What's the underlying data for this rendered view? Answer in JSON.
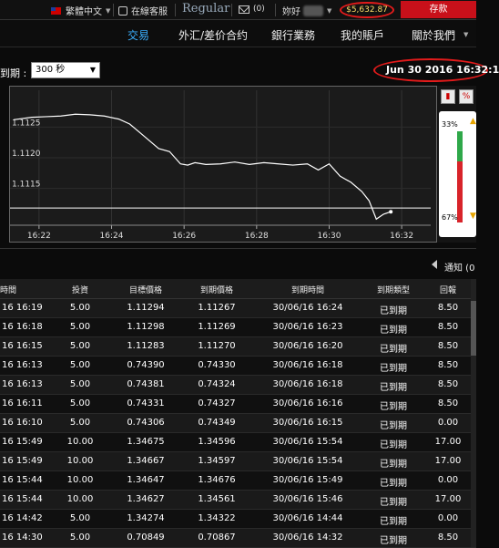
{
  "topbar": {
    "language": "繁體中文",
    "support": "在線客服",
    "account_type": "Regular",
    "mail_count": "(0)",
    "greeting": "妳好",
    "balance": "$5,632.87",
    "deposit_label": "存款"
  },
  "nav": {
    "items": [
      "交易",
      "外汇/差价合约",
      "銀行業務",
      "我的賬戶",
      "關於我們"
    ],
    "active_index": 0
  },
  "expiry": {
    "label": "到期 :",
    "selected": "300 秒",
    "datetime": "Jun 30 2016  16:32:1"
  },
  "chart_data": {
    "type": "line",
    "x_ticks": [
      "16:22",
      "16:24",
      "16:26",
      "16:28",
      "16:30",
      "16:32"
    ],
    "y_ticks": [
      1.1125,
      1.112,
      1.1115
    ],
    "y_tick_labels": [
      "1.1125",
      "1.1120",
      "1.1115"
    ],
    "ylim": [
      1.1109,
      1.1131
    ],
    "x_range_minutes": [
      21.2,
      32.8
    ],
    "series": [
      {
        "x": [
          21.3,
          21.8,
          22.2,
          22.6,
          23.0,
          23.4,
          23.8,
          24.2,
          24.5,
          24.8,
          25.0,
          25.3,
          25.6,
          25.9,
          26.1,
          26.3,
          26.6,
          27.0,
          27.4,
          27.8,
          28.2,
          28.6,
          29.0,
          29.4,
          29.7,
          30.0,
          30.3,
          30.6,
          30.9,
          31.1,
          31.3,
          31.5,
          31.7
        ],
        "y": [
          1.11262,
          1.11266,
          1.11267,
          1.11268,
          1.11271,
          1.1127,
          1.11268,
          1.11263,
          1.11255,
          1.1124,
          1.1123,
          1.11215,
          1.1121,
          1.1119,
          1.11188,
          1.11192,
          1.11189,
          1.1119,
          1.11193,
          1.11189,
          1.11192,
          1.1119,
          1.11188,
          1.1119,
          1.1118,
          1.1119,
          1.1117,
          1.1116,
          1.11145,
          1.1113,
          1.111,
          1.11108,
          1.11112
        ]
      }
    ],
    "current_level": 1.11118,
    "call_put": {
      "up_label": "33%",
      "down_label": "67%",
      "up_ratio": 0.33,
      "down_ratio": 0.67
    }
  },
  "notice": {
    "label": "通知 (0"
  },
  "table": {
    "columns": [
      "時間",
      "投資",
      "目標價格",
      "到期價格",
      "到期時間",
      "到期類型",
      "回報"
    ],
    "rows": [
      [
        "16 16:19",
        "5.00",
        "1.11294",
        "1.11267",
        "30/06/16 16:24",
        "已到期",
        "8.50"
      ],
      [
        "16 16:18",
        "5.00",
        "1.11298",
        "1.11269",
        "30/06/16 16:23",
        "已到期",
        "8.50"
      ],
      [
        "16 16:15",
        "5.00",
        "1.11283",
        "1.11270",
        "30/06/16 16:20",
        "已到期",
        "8.50"
      ],
      [
        "16 16:13",
        "5.00",
        "0.74390",
        "0.74330",
        "30/06/16 16:18",
        "已到期",
        "8.50"
      ],
      [
        "16 16:13",
        "5.00",
        "0.74381",
        "0.74324",
        "30/06/16 16:18",
        "已到期",
        "8.50"
      ],
      [
        "16 16:11",
        "5.00",
        "0.74331",
        "0.74327",
        "30/06/16 16:16",
        "已到期",
        "8.50"
      ],
      [
        "16 16:10",
        "5.00",
        "0.74306",
        "0.74349",
        "30/06/16 16:15",
        "已到期",
        "0.00"
      ],
      [
        "16 15:49",
        "10.00",
        "1.34675",
        "1.34596",
        "30/06/16 15:54",
        "已到期",
        "17.00"
      ],
      [
        "16 15:49",
        "10.00",
        "1.34667",
        "1.34597",
        "30/06/16 15:54",
        "已到期",
        "17.00"
      ],
      [
        "16 15:44",
        "10.00",
        "1.34647",
        "1.34676",
        "30/06/16 15:49",
        "已到期",
        "0.00"
      ],
      [
        "16 15:44",
        "10.00",
        "1.34627",
        "1.34561",
        "30/06/16 15:46",
        "已到期",
        "17.00"
      ],
      [
        "16 14:42",
        "5.00",
        "1.34274",
        "1.34322",
        "30/06/16 14:44",
        "已到期",
        "0.00"
      ],
      [
        "16 14:30",
        "5.00",
        "0.70849",
        "0.70867",
        "30/06/16 14:32",
        "已到期",
        "8.50"
      ]
    ]
  }
}
